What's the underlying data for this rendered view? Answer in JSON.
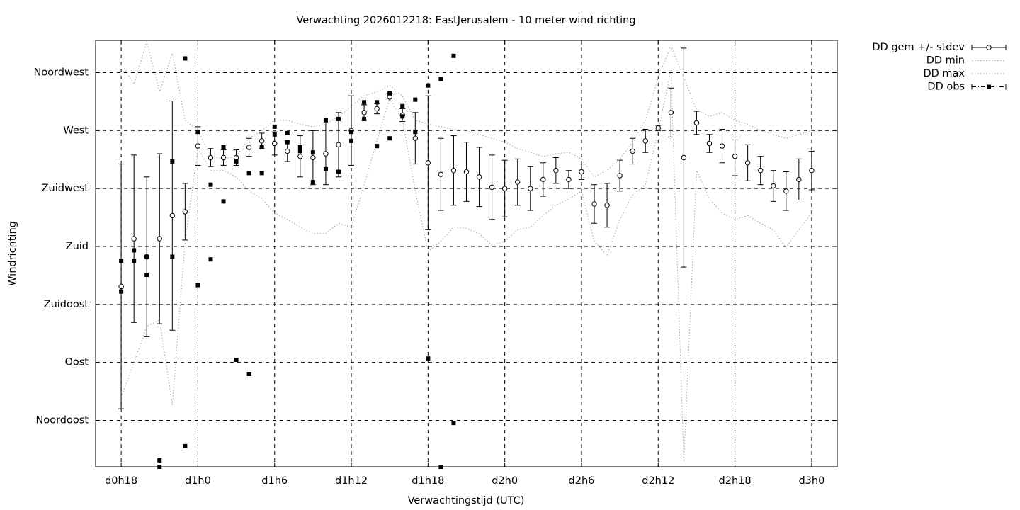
{
  "chart_data": {
    "type": "line",
    "title": "Verwachting 2026012218: EastJerusalem - 10 meter wind richting",
    "xlabel": "Verwachtingstijd (UTC)",
    "ylabel": "Windrichting",
    "xlim": [
      16,
      74
    ],
    "ylim": [
      9,
      340
    ],
    "xticks": [
      {
        "value": 18,
        "label": "d0h18"
      },
      {
        "value": 24,
        "label": "d1h0"
      },
      {
        "value": 30,
        "label": "d1h6"
      },
      {
        "value": 36,
        "label": "d1h12"
      },
      {
        "value": 42,
        "label": "d1h18"
      },
      {
        "value": 48,
        "label": "d2h0"
      },
      {
        "value": 54,
        "label": "d2h6"
      },
      {
        "value": 60,
        "label": "d2h12"
      },
      {
        "value": 66,
        "label": "d2h18"
      },
      {
        "value": 72,
        "label": "d3h0"
      }
    ],
    "yticks": [
      {
        "value": 45,
        "label": "Noordoost"
      },
      {
        "value": 90,
        "label": "Oost"
      },
      {
        "value": 135,
        "label": "Zuidoost"
      },
      {
        "value": 180,
        "label": "Zuid"
      },
      {
        "value": 225,
        "label": "Zuidwest"
      },
      {
        "value": 270,
        "label": "West"
      },
      {
        "value": 315,
        "label": "Noordwest"
      }
    ],
    "grid": true,
    "legend": "outside-top-right",
    "x": [
      18,
      19,
      20,
      21,
      22,
      23,
      24,
      25,
      26,
      27,
      28,
      29,
      30,
      31,
      32,
      33,
      34,
      35,
      36,
      37,
      38,
      39,
      40,
      41,
      42,
      43,
      44,
      45,
      46,
      47,
      48,
      49,
      50,
      51,
      52,
      53,
      54,
      55,
      56,
      57,
      58,
      59,
      60,
      61,
      62,
      63,
      64,
      65,
      66,
      67,
      68,
      69,
      70,
      71,
      72
    ],
    "series": [
      {
        "name": "DD gem +/- stdev",
        "type": "errorbar",
        "color": "#000000",
        "values": [
          149,
          186,
          172,
          186,
          204,
          207,
          258,
          249,
          249,
          249,
          257,
          262,
          260,
          254,
          250,
          249,
          252,
          259,
          270,
          284,
          287,
          296,
          282,
          264,
          245,
          236,
          239,
          238,
          234,
          226,
          225,
          230,
          225,
          232,
          239,
          232,
          238,
          213,
          212,
          235,
          254,
          262,
          272,
          284,
          249,
          276,
          260,
          258,
          250,
          245,
          239,
          227,
          223,
          232,
          239
        ],
        "errors": [
          95,
          65,
          62,
          66,
          89,
          22,
          15,
          7,
          6,
          6,
          7,
          6,
          9,
          8,
          16,
          21,
          24,
          25,
          27,
          6,
          4,
          3,
          5,
          20,
          52,
          28,
          27,
          23,
          23,
          25,
          22,
          18,
          17,
          13,
          10,
          7,
          6,
          15,
          17,
          12,
          10,
          9,
          2,
          19,
          85,
          9,
          7,
          13,
          15,
          14,
          11,
          12,
          15,
          16,
          15
        ]
      },
      {
        "name": "DD min",
        "type": "line",
        "color": "#a0a0a0",
        "values": [
          63,
          90,
          118,
          123,
          57,
          184,
          256,
          239,
          239,
          234,
          223,
          217,
          206,
          201,
          195,
          190,
          190,
          198,
          195,
          228,
          262,
          295,
          278,
          223,
          176,
          184,
          195,
          194,
          190,
          181,
          184,
          193,
          195,
          204,
          212,
          217,
          223,
          184,
          173,
          201,
          220,
          228,
          270,
          317,
          13,
          239,
          217,
          206,
          201,
          204,
          198,
          193,
          179,
          193,
          206
        ]
      },
      {
        "name": "DD max",
        "type": "line",
        "color": "#a0a0a0",
        "values": [
          322,
          306,
          339,
          300,
          330,
          278,
          270,
          250,
          248,
          250,
          264,
          270,
          278,
          278,
          275,
          273,
          275,
          281,
          289,
          297,
          300,
          305,
          297,
          278,
          275,
          273,
          271,
          270,
          267,
          264,
          261,
          256,
          253,
          250,
          252,
          253,
          248,
          234,
          239,
          248,
          261,
          278,
          311,
          336,
          311,
          286,
          281,
          284,
          278,
          275,
          270,
          267,
          264,
          267,
          270
        ]
      },
      {
        "name": "DD obs",
        "type": "scatter",
        "color": "#000000",
        "x": [
          18,
          18,
          19,
          19,
          20,
          20,
          21,
          21,
          22,
          22,
          23,
          23,
          24,
          24,
          25,
          25,
          26,
          26,
          27,
          27,
          28,
          28,
          29,
          29,
          30,
          30,
          31,
          31,
          32,
          32,
          33,
          33,
          34,
          34,
          35,
          35,
          36,
          36,
          37,
          37,
          38,
          38,
          39,
          39,
          40,
          40,
          41,
          41,
          42,
          42,
          43,
          43,
          44,
          44
        ],
        "values": [
          169,
          145,
          177,
          169,
          172,
          158,
          14,
          9,
          246,
          172,
          326,
          25,
          269,
          150,
          228,
          170,
          257,
          215,
          246,
          92,
          237,
          81,
          257,
          237,
          273,
          267,
          268,
          261,
          257,
          254,
          253,
          230,
          278,
          240,
          279,
          238,
          269,
          262,
          292,
          279,
          292,
          258,
          299,
          264,
          289,
          281,
          294,
          269,
          305,
          93,
          310,
          9,
          328,
          43
        ]
      }
    ]
  }
}
